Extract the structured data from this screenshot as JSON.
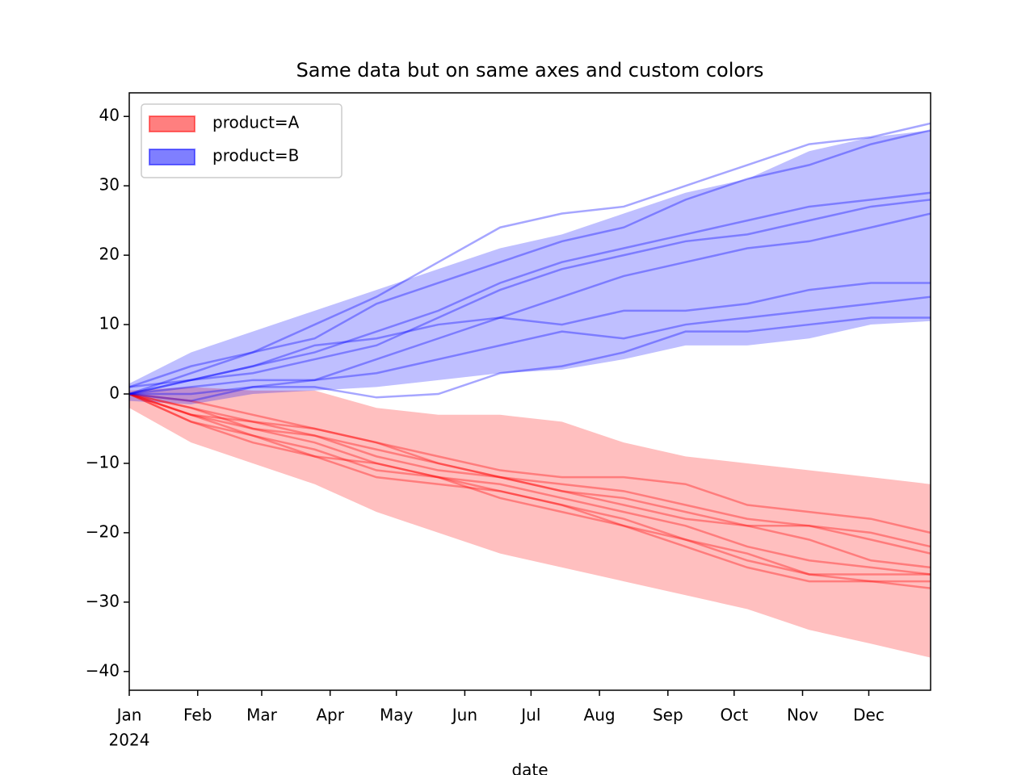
{
  "chart_data": {
    "type": "line",
    "title": "Same data but on same axes and custom colors",
    "x_label": "date",
    "x": [
      "2024-01-01",
      "2024-01-29",
      "2024-02-26",
      "2024-03-25",
      "2024-04-22",
      "2024-05-20",
      "2024-06-17",
      "2024-07-15",
      "2024-08-12",
      "2024-09-09",
      "2024-10-07",
      "2024-11-04",
      "2024-12-02",
      "2024-12-29"
    ],
    "xlim": [
      "2024-01-01",
      "2024-12-29"
    ],
    "xticks": [
      {
        "value": "2024-01-01",
        "label": "Jan"
      },
      {
        "value": "2024-02-01",
        "label": "Feb"
      },
      {
        "value": "2024-03-01",
        "label": "Mar"
      },
      {
        "value": "2024-04-01",
        "label": "Apr"
      },
      {
        "value": "2024-05-01",
        "label": "May"
      },
      {
        "value": "2024-06-01",
        "label": "Jun"
      },
      {
        "value": "2024-07-01",
        "label": "Jul"
      },
      {
        "value": "2024-08-01",
        "label": "Aug"
      },
      {
        "value": "2024-09-01",
        "label": "Sep"
      },
      {
        "value": "2024-10-01",
        "label": "Oct"
      },
      {
        "value": "2024-11-01",
        "label": "Nov"
      },
      {
        "value": "2024-12-01",
        "label": "Dec"
      }
    ],
    "xtick_sublabel": "2024",
    "ylim": [
      -42.7,
      43.4
    ],
    "yticks": [
      {
        "value": -40,
        "label": "−40"
      },
      {
        "value": -30,
        "label": "−30"
      },
      {
        "value": -20,
        "label": "−20"
      },
      {
        "value": -10,
        "label": "−10"
      },
      0,
      10,
      20,
      30,
      40
    ],
    "legend": "upper left",
    "series": [
      {
        "name": "product=A",
        "color": "#ff0000",
        "lower": [
          -2,
          -7,
          -10,
          -13,
          -17,
          -20,
          -23,
          -25,
          -27,
          -29,
          -31,
          -34,
          -36,
          -38
        ],
        "upper": [
          0.5,
          1,
          0.5,
          0.5,
          -2,
          -3,
          -3,
          -4,
          -7,
          -9,
          -10,
          -11,
          -12,
          -13
        ],
        "lines": [
          [
            0,
            -1,
            -3,
            -5,
            -7,
            -9,
            -11,
            -12,
            -12,
            -13,
            -16,
            -17,
            -18,
            -20
          ],
          [
            0,
            -2,
            -4,
            -5,
            -7,
            -10,
            -12,
            -13,
            -14,
            -16,
            -18,
            -19,
            -20,
            -22
          ],
          [
            0,
            -3,
            -4,
            -6,
            -8,
            -10,
            -12,
            -14,
            -15,
            -17,
            -19,
            -19,
            -21,
            -23
          ],
          [
            0,
            -2,
            -5,
            -6,
            -9,
            -11,
            -12,
            -14,
            -16,
            -18,
            -19,
            -21,
            -24,
            -25
          ],
          [
            0,
            -3,
            -5,
            -7,
            -10,
            -12,
            -13,
            -15,
            -17,
            -19,
            -22,
            -24,
            -25,
            -26
          ],
          [
            0,
            -4,
            -6,
            -8,
            -11,
            -12,
            -14,
            -16,
            -18,
            -21,
            -24,
            -26,
            -26,
            -26
          ],
          [
            0,
            -3,
            -6,
            -9,
            -10,
            -12,
            -15,
            -17,
            -19,
            -21,
            -23,
            -26,
            -27,
            -27
          ],
          [
            0,
            -4,
            -7,
            -9,
            -12,
            -13,
            -14,
            -16,
            -19,
            -22,
            -25,
            -27,
            -27,
            -28
          ]
        ]
      },
      {
        "name": "product=B",
        "color": "#0000ff",
        "lower": [
          -1,
          -1.5,
          0,
          0.5,
          1,
          2,
          3,
          3.5,
          5,
          7,
          7,
          8,
          10,
          10.5
        ],
        "upper": [
          1.5,
          6,
          9,
          12,
          15,
          18,
          21,
          23,
          26,
          29,
          31,
          35,
          37,
          38
        ],
        "lines": [
          [
            0,
            3,
            6,
            10,
            14,
            19,
            24,
            26,
            27,
            30,
            33,
            36,
            37,
            39
          ],
          [
            1,
            4,
            6,
            8,
            13,
            16,
            19,
            22,
            24,
            28,
            31,
            33,
            36,
            38
          ],
          [
            0,
            2,
            4,
            6,
            9,
            12,
            16,
            19,
            21,
            23,
            25,
            27,
            28,
            29
          ],
          [
            1,
            2,
            3,
            5,
            7,
            11,
            15,
            18,
            20,
            22,
            23,
            25,
            27,
            28
          ],
          [
            0,
            1,
            2,
            2,
            5,
            8,
            11,
            14,
            17,
            19,
            21,
            22,
            24,
            26
          ],
          [
            0,
            2,
            4,
            7,
            8,
            10,
            11,
            10,
            12,
            12,
            13,
            15,
            16,
            16
          ],
          [
            0,
            -1,
            1,
            2,
            3,
            5,
            7,
            9,
            8,
            10,
            11,
            12,
            13,
            14
          ],
          [
            0,
            0,
            1,
            1,
            -0.5,
            0,
            3,
            4,
            6,
            9,
            9,
            10,
            11,
            11
          ]
        ]
      }
    ]
  }
}
